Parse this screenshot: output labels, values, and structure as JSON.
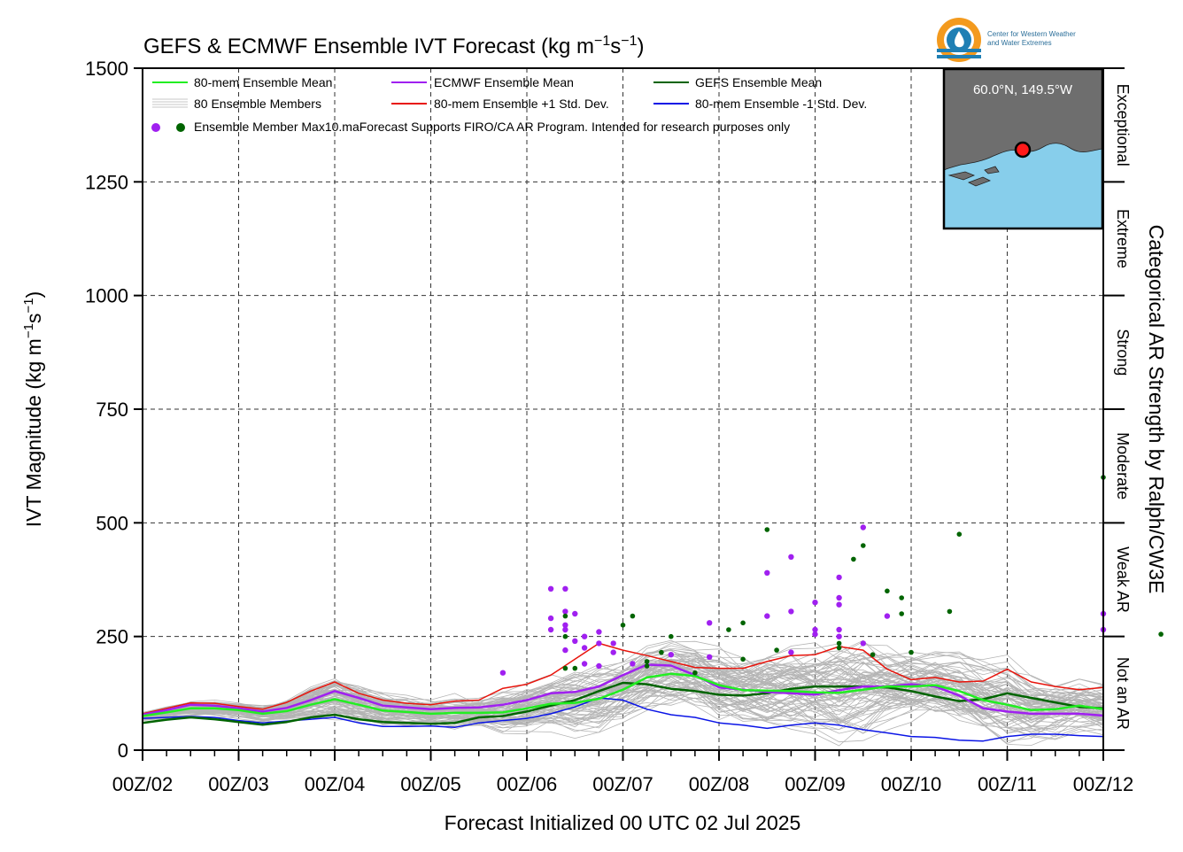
{
  "chart_data": {
    "type": "line",
    "title_main": "GEFS & ECMWF Ensemble IVT Forecast (kg m",
    "title_sup1": "−1",
    "title_s": "s",
    "title_sup2": "−1",
    "title_close": ")",
    "ylabel_main": "IVT Magnitude (kg m",
    "ylabel_sup1": "−1",
    "ylabel_s": "s",
    "ylabel_sup2": "−1",
    "ylabel_close": ")",
    "xlabel": "Forecast Initialized 00 UTC 02 Jul 2025",
    "right_label": "Categorical AR Strength by Ralph/CW3E",
    "ylim": [
      0,
      1500
    ],
    "yticks": [
      "0",
      "250",
      "500",
      "750",
      "1000",
      "1250",
      "1500"
    ],
    "xlim_days": [
      0,
      10
    ],
    "xticks": [
      "00Z/02",
      "00Z/03",
      "00Z/04",
      "00Z/05",
      "00Z/06",
      "00Z/07",
      "00Z/08",
      "00Z/09",
      "00Z/10",
      "00Z/11",
      "00Z/12"
    ],
    "grid": true,
    "legend_position": "top-left",
    "legend": {
      "ens_mean": "80-mem Ensemble Mean",
      "ecmwf_mean": "ECMWF Ensemble Mean",
      "gefs_mean": "GEFS Ensemble Mean",
      "members": "80 Ensemble Members",
      "plus_std": "80-mem Ensemble +1 Std. Dev.",
      "minus_std": "80-mem Ensemble -1 Std. Dev.",
      "max_points": "Ensemble Member Max10.ma",
      "note": "Forecast Supports FIRO/CA AR Program. Intended for research purposes only"
    },
    "categories": [
      {
        "label": "Not an AR",
        "range": [
          0,
          250
        ]
      },
      {
        "label": "Weak AR",
        "range": [
          250,
          500
        ]
      },
      {
        "label": "Moderate",
        "range": [
          500,
          750
        ]
      },
      {
        "label": "Strong",
        "range": [
          750,
          1000
        ]
      },
      {
        "label": "Extreme",
        "range": [
          1000,
          1250
        ]
      },
      {
        "label": "Exceptional",
        "range": [
          1250,
          1500
        ]
      }
    ],
    "inset_location": "60.0°N, 149.5°W",
    "logo_text": [
      "Center for Western Weather",
      "and Water Extremes"
    ],
    "colors": {
      "ens_mean": "#22ee22",
      "ecmwf_mean": "#a020f0",
      "gefs_mean": "#006400",
      "plus_std": "#e8140c",
      "minus_std": "#0a14e6",
      "members": "#b4b4b4",
      "map_ocean": "#87ceeb",
      "map_land": "#6e6e6e"
    },
    "series": [
      {
        "name": "80-mem Ensemble Mean",
        "x": [
          0,
          0.25,
          0.5,
          0.75,
          1,
          1.25,
          1.5,
          1.75,
          2,
          2.25,
          2.5,
          2.75,
          3,
          3.25,
          3.5,
          3.75,
          4,
          4.25,
          4.5,
          4.75,
          5,
          5.25,
          5.5,
          5.75,
          6,
          6.25,
          6.5,
          6.75,
          7,
          7.25,
          7.5,
          7.75,
          8,
          8.25,
          8.5,
          8.75,
          9,
          9.25,
          9.5,
          9.75,
          10
        ],
        "values": [
          75,
          83,
          92,
          92,
          88,
          80,
          86,
          100,
          112,
          100,
          87,
          84,
          80,
          82,
          82,
          83,
          92,
          102,
          104,
          113,
          133,
          160,
          168,
          163,
          143,
          132,
          131,
          130,
          127,
          126,
          133,
          140,
          140,
          143,
          130,
          110,
          100,
          88,
          90,
          98,
          90
        ]
      },
      {
        "name": "ECMWF Ensemble Mean",
        "x": [
          0,
          0.25,
          0.5,
          0.75,
          1,
          1.25,
          1.5,
          1.75,
          2,
          2.25,
          2.5,
          2.75,
          3,
          3.25,
          3.5,
          3.75,
          4,
          4.25,
          4.5,
          4.75,
          5,
          5.25,
          5.5,
          5.75,
          6,
          6.25,
          6.5,
          6.75,
          7,
          7.25,
          7.5,
          7.75,
          8,
          8.25,
          8.5,
          8.75,
          9,
          9.25,
          9.5,
          9.75,
          10
        ],
        "values": [
          78,
          88,
          100,
          98,
          92,
          85,
          93,
          110,
          130,
          115,
          98,
          94,
          90,
          93,
          94,
          100,
          110,
          125,
          128,
          140,
          165,
          188,
          186,
          165,
          138,
          133,
          128,
          125,
          122,
          132,
          140,
          140,
          145,
          140,
          120,
          92,
          85,
          80,
          80,
          80,
          76
        ]
      },
      {
        "name": "GEFS Ensemble Mean",
        "x": [
          0,
          0.25,
          0.5,
          0.75,
          1,
          1.25,
          1.5,
          1.75,
          2,
          2.25,
          2.5,
          2.75,
          3,
          3.25,
          3.5,
          3.75,
          4,
          4.25,
          4.5,
          4.75,
          5,
          5.25,
          5.5,
          5.75,
          6,
          6.25,
          6.5,
          6.75,
          7,
          7.25,
          7.5,
          7.75,
          8,
          8.25,
          8.5,
          8.75,
          9,
          9.25,
          9.5,
          9.75,
          10
        ],
        "values": [
          60,
          67,
          72,
          68,
          62,
          56,
          62,
          72,
          78,
          68,
          62,
          60,
          58,
          60,
          72,
          75,
          85,
          98,
          110,
          130,
          148,
          145,
          135,
          130,
          122,
          120,
          125,
          135,
          140,
          140,
          140,
          138,
          130,
          118,
          108,
          112,
          125,
          115,
          105,
          95,
          92
        ]
      },
      {
        "name": "80-mem Ensemble +1 Std. Dev.",
        "x": [
          0,
          0.25,
          0.5,
          0.75,
          1,
          1.25,
          1.5,
          1.75,
          2,
          2.25,
          2.5,
          2.75,
          3,
          3.25,
          3.5,
          3.75,
          4,
          4.25,
          4.5,
          4.75,
          5,
          5.25,
          5.5,
          5.75,
          6,
          6.25,
          6.5,
          6.75,
          7,
          7.25,
          7.5,
          7.75,
          8,
          8.25,
          8.5,
          8.75,
          9,
          9.25,
          9.5,
          9.75,
          10
        ],
        "values": [
          80,
          92,
          104,
          103,
          96,
          90,
          105,
          130,
          150,
          125,
          110,
          103,
          100,
          108,
          110,
          136,
          145,
          165,
          200,
          235,
          220,
          208,
          195,
          182,
          180,
          180,
          195,
          208,
          210,
          228,
          220,
          178,
          155,
          160,
          150,
          152,
          178,
          150,
          140,
          133,
          138
        ]
      },
      {
        "name": "80-mem Ensemble -1 Std. Dev.",
        "x": [
          0,
          0.25,
          0.5,
          0.75,
          1,
          1.25,
          1.5,
          1.75,
          2,
          2.25,
          2.5,
          2.75,
          3,
          3.25,
          3.5,
          3.75,
          4,
          4.25,
          4.5,
          4.75,
          5,
          5.25,
          5.5,
          5.75,
          6,
          6.25,
          6.5,
          6.75,
          7,
          7.25,
          7.5,
          7.75,
          8,
          8.25,
          8.5,
          8.75,
          9,
          9.25,
          9.5,
          9.75,
          10
        ],
        "values": [
          70,
          72,
          74,
          72,
          65,
          60,
          64,
          68,
          72,
          60,
          52,
          52,
          53,
          50,
          60,
          65,
          70,
          80,
          95,
          115,
          110,
          90,
          78,
          72,
          60,
          55,
          48,
          55,
          60,
          55,
          45,
          38,
          30,
          28,
          22,
          20,
          30,
          35,
          35,
          32,
          30
        ]
      }
    ],
    "max_points": [
      {
        "model": "ECMWF",
        "x": 3.75,
        "y": 170
      },
      {
        "model": "ECMWF",
        "x": 4.25,
        "y": 355
      },
      {
        "model": "ECMWF",
        "x": 4.25,
        "y": 290
      },
      {
        "model": "ECMWF",
        "x": 4.25,
        "y": 265
      },
      {
        "model": "ECMWF",
        "x": 4.4,
        "y": 355
      },
      {
        "model": "ECMWF",
        "x": 4.4,
        "y": 305
      },
      {
        "model": "ECMWF",
        "x": 4.4,
        "y": 275
      },
      {
        "model": "ECMWF",
        "x": 4.4,
        "y": 265
      },
      {
        "model": "ECMWF",
        "x": 4.4,
        "y": 220
      },
      {
        "model": "ECMWF",
        "x": 4.5,
        "y": 300
      },
      {
        "model": "ECMWF",
        "x": 4.5,
        "y": 240
      },
      {
        "model": "ECMWF",
        "x": 4.6,
        "y": 250
      },
      {
        "model": "ECMWF",
        "x": 4.6,
        "y": 225
      },
      {
        "model": "ECMWF",
        "x": 4.6,
        "y": 190
      },
      {
        "model": "ECMWF",
        "x": 4.75,
        "y": 260
      },
      {
        "model": "ECMWF",
        "x": 4.75,
        "y": 235
      },
      {
        "model": "ECMWF",
        "x": 4.75,
        "y": 185
      },
      {
        "model": "ECMWF",
        "x": 4.9,
        "y": 235
      },
      {
        "model": "ECMWF",
        "x": 4.9,
        "y": 215
      },
      {
        "model": "ECMWF",
        "x": 5.1,
        "y": 190
      },
      {
        "model": "ECMWF",
        "x": 5.5,
        "y": 210
      },
      {
        "model": "ECMWF",
        "x": 5.9,
        "y": 280
      },
      {
        "model": "ECMWF",
        "x": 5.9,
        "y": 205
      },
      {
        "model": "ECMWF",
        "x": 6.5,
        "y": 390
      },
      {
        "model": "ECMWF",
        "x": 6.5,
        "y": 295
      },
      {
        "model": "ECMWF",
        "x": 6.75,
        "y": 425
      },
      {
        "model": "ECMWF",
        "x": 6.75,
        "y": 305
      },
      {
        "model": "ECMWF",
        "x": 6.75,
        "y": 215
      },
      {
        "model": "ECMWF",
        "x": 7.0,
        "y": 325
      },
      {
        "model": "ECMWF",
        "x": 7.0,
        "y": 265
      },
      {
        "model": "ECMWF",
        "x": 7.0,
        "y": 255
      },
      {
        "model": "ECMWF",
        "x": 7.25,
        "y": 380
      },
      {
        "model": "ECMWF",
        "x": 7.25,
        "y": 335
      },
      {
        "model": "ECMWF",
        "x": 7.25,
        "y": 320
      },
      {
        "model": "ECMWF",
        "x": 7.25,
        "y": 265
      },
      {
        "model": "ECMWF",
        "x": 7.25,
        "y": 250
      },
      {
        "model": "ECMWF",
        "x": 7.5,
        "y": 490
      },
      {
        "model": "ECMWF",
        "x": 7.5,
        "y": 235
      },
      {
        "model": "ECMWF",
        "x": 7.75,
        "y": 295
      },
      {
        "model": "ECMWF",
        "x": 10.0,
        "y": 300
      },
      {
        "model": "ECMWF",
        "x": 10.0,
        "y": 265
      },
      {
        "model": "GEFS",
        "x": 4.4,
        "y": 295
      },
      {
        "model": "GEFS",
        "x": 4.4,
        "y": 250
      },
      {
        "model": "GEFS",
        "x": 4.4,
        "y": 180
      },
      {
        "model": "GEFS",
        "x": 4.5,
        "y": 180
      },
      {
        "model": "GEFS",
        "x": 5.0,
        "y": 275
      },
      {
        "model": "GEFS",
        "x": 5.1,
        "y": 295
      },
      {
        "model": "GEFS",
        "x": 5.25,
        "y": 195
      },
      {
        "model": "GEFS",
        "x": 5.25,
        "y": 185
      },
      {
        "model": "GEFS",
        "x": 5.4,
        "y": 215
      },
      {
        "model": "GEFS",
        "x": 5.5,
        "y": 250
      },
      {
        "model": "GEFS",
        "x": 5.75,
        "y": 170
      },
      {
        "model": "GEFS",
        "x": 6.1,
        "y": 265
      },
      {
        "model": "GEFS",
        "x": 6.25,
        "y": 280
      },
      {
        "model": "GEFS",
        "x": 6.25,
        "y": 200
      },
      {
        "model": "GEFS",
        "x": 6.5,
        "y": 485
      },
      {
        "model": "GEFS",
        "x": 6.6,
        "y": 220
      },
      {
        "model": "GEFS",
        "x": 7.25,
        "y": 225
      },
      {
        "model": "GEFS",
        "x": 7.25,
        "y": 235
      },
      {
        "model": "GEFS",
        "x": 7.4,
        "y": 420
      },
      {
        "model": "GEFS",
        "x": 7.5,
        "y": 450
      },
      {
        "model": "GEFS",
        "x": 7.6,
        "y": 210
      },
      {
        "model": "GEFS",
        "x": 7.75,
        "y": 350
      },
      {
        "model": "GEFS",
        "x": 7.9,
        "y": 335
      },
      {
        "model": "GEFS",
        "x": 7.9,
        "y": 300
      },
      {
        "model": "GEFS",
        "x": 8.0,
        "y": 215
      },
      {
        "model": "GEFS",
        "x": 8.4,
        "y": 305
      },
      {
        "model": "GEFS",
        "x": 8.5,
        "y": 475
      },
      {
        "model": "GEFS",
        "x": 10.0,
        "y": 600
      },
      {
        "model": "GEFS",
        "x": 10.6,
        "y": 255
      }
    ]
  }
}
